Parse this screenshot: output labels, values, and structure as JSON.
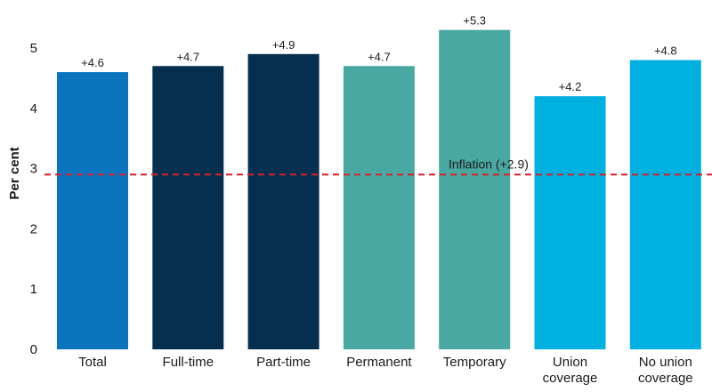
{
  "chart_data": {
    "type": "bar",
    "categories": [
      [
        "Total"
      ],
      [
        "Full-time"
      ],
      [
        "Part-time"
      ],
      [
        "Permanent"
      ],
      [
        "Temporary"
      ],
      [
        "Union",
        "coverage"
      ],
      [
        "No union",
        "coverage"
      ]
    ],
    "values": [
      4.6,
      4.7,
      4.9,
      4.7,
      5.3,
      4.2,
      4.8
    ],
    "data_labels": [
      "+4.6",
      "+4.7",
      "+4.9",
      "+4.7",
      "+5.3",
      "+4.2",
      "+4.8"
    ],
    "bar_colors": [
      "#0a74bf",
      "#062f4f",
      "#062f4f",
      "#4aa8a3",
      "#4aa8a3",
      "#00b0e0",
      "#00b0e0"
    ],
    "ylabel": "Per cent",
    "yticks": [
      0,
      1,
      2,
      3,
      4,
      5
    ],
    "ylim": [
      0,
      5.3
    ],
    "grid": false,
    "reference_line": {
      "value": 2.9,
      "label": "Inflation (+2.9)",
      "color": "#d6202a",
      "style": "dashed"
    }
  }
}
